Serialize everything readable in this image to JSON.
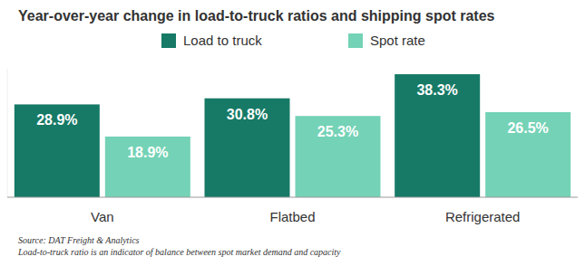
{
  "chart_data": {
    "type": "bar",
    "title": "Year-over-year change in load-to-truck ratios and shipping spot rates",
    "categories": [
      "Van",
      "Flatbed",
      "Refrigerated"
    ],
    "series": [
      {
        "name": "Load to truck",
        "color": "#167a66",
        "values": [
          28.9,
          30.8,
          38.3
        ],
        "value_labels": [
          "28.9%",
          "30.8%",
          "38.3%"
        ]
      },
      {
        "name": "Spot rate",
        "color": "#74d2b6",
        "values": [
          18.9,
          25.3,
          26.5
        ],
        "value_labels": [
          "18.9%",
          "25.3%",
          "26.5%"
        ]
      }
    ],
    "ylim": [
      0,
      40
    ],
    "grid": false,
    "legend": "top",
    "data_labels": true,
    "tick_labels": "x",
    "annotations": [
      "Source: DAT Freight & Analytics",
      "Load-to-truck ratio is an indicator of balance between spot market demand and capacity"
    ]
  }
}
